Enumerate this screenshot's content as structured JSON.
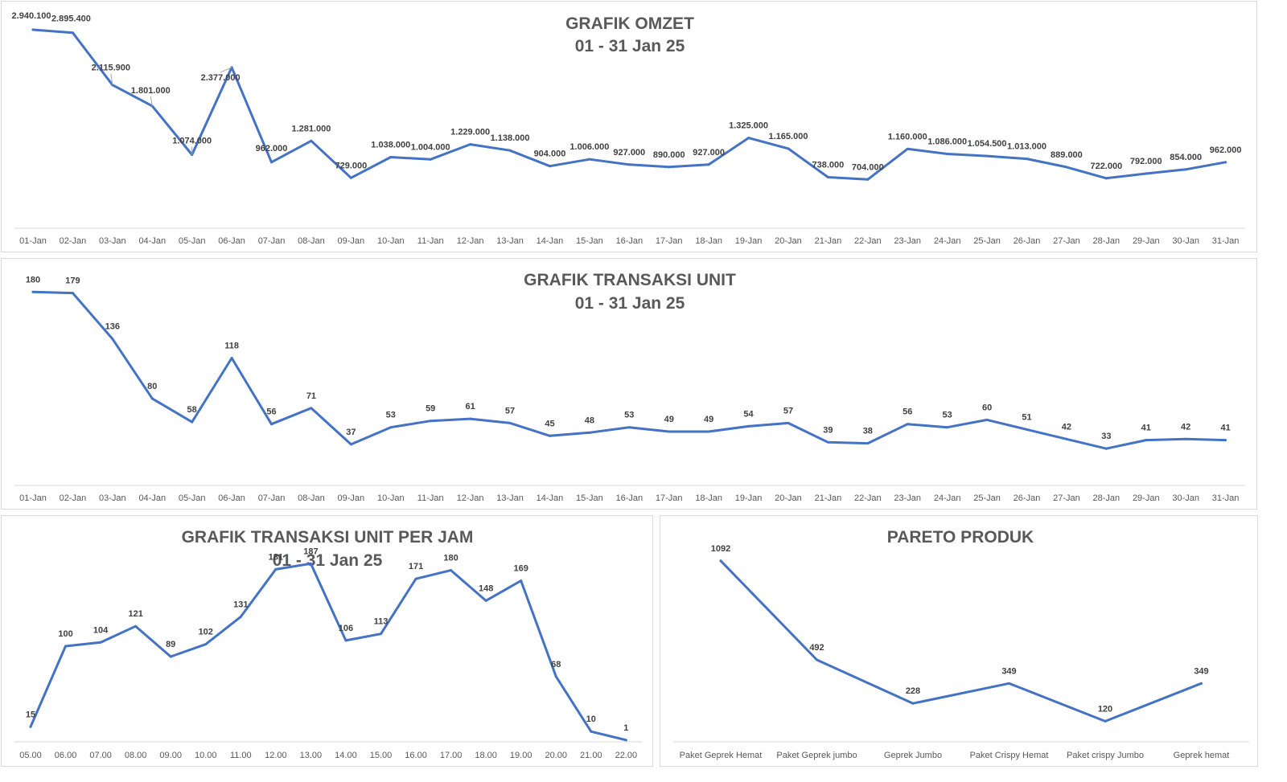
{
  "chart_data": [
    {
      "id": "omzet",
      "type": "line",
      "title": "GRAFIK OMZET",
      "subtitle": "01 - 31 Jan 25",
      "xlabel": "",
      "ylabel": "",
      "grid": false,
      "legend": "none",
      "series_color": "#4472c4",
      "ylim": [
        0,
        3000000
      ],
      "categories": [
        "01-Jan",
        "02-Jan",
        "03-Jan",
        "04-Jan",
        "05-Jan",
        "06-Jan",
        "07-Jan",
        "08-Jan",
        "09-Jan",
        "10-Jan",
        "11-Jan",
        "12-Jan",
        "13-Jan",
        "14-Jan",
        "15-Jan",
        "16-Jan",
        "17-Jan",
        "18-Jan",
        "19-Jan",
        "20-Jan",
        "21-Jan",
        "22-Jan",
        "23-Jan",
        "24-Jan",
        "25-Jan",
        "26-Jan",
        "27-Jan",
        "28-Jan",
        "29-Jan",
        "30-Jan",
        "31-Jan"
      ],
      "values": [
        2940100,
        2895400,
        2115900,
        1801000,
        1074000,
        2377000,
        962000,
        1281000,
        729000,
        1038000,
        1004000,
        1229000,
        1138000,
        904000,
        1006000,
        927000,
        890000,
        927000,
        1325000,
        1165000,
        738000,
        704000,
        1160000,
        1086000,
        1054500,
        1013000,
        889000,
        722000,
        792000,
        854000,
        962000
      ],
      "labels": [
        "2.940.100",
        "2.895.400",
        "2.115.900",
        "1.801.000",
        "1.074.000",
        "2.377.000",
        "962.000",
        "1.281.000",
        "729.000",
        "1.038.000",
        "1.004.000",
        "1.229.000",
        "1.138.000",
        "904.000",
        "1.006.000",
        "927.000",
        "890.000",
        "927.000",
        "1.325.000",
        "1.165.000",
        "738.000",
        "704.000",
        "1.160.000",
        "1.086.000",
        "1.054.500",
        "1.013.000",
        "889.000",
        "722.000",
        "792.000",
        "854.000",
        "962.000"
      ]
    },
    {
      "id": "transaksi",
      "type": "line",
      "title": "GRAFIK TRANSAKSI UNIT",
      "subtitle": "01 - 31 Jan 25",
      "xlabel": "",
      "ylabel": "",
      "grid": false,
      "legend": "none",
      "series_color": "#4472c4",
      "ylim": [
        0,
        190
      ],
      "categories": [
        "01-Jan",
        "02-Jan",
        "03-Jan",
        "04-Jan",
        "05-Jan",
        "06-Jan",
        "07-Jan",
        "08-Jan",
        "09-Jan",
        "10-Jan",
        "11-Jan",
        "12-Jan",
        "13-Jan",
        "14-Jan",
        "15-Jan",
        "16-Jan",
        "17-Jan",
        "18-Jan",
        "19-Jan",
        "20-Jan",
        "21-Jan",
        "22-Jan",
        "23-Jan",
        "24-Jan",
        "25-Jan",
        "26-Jan",
        "27-Jan",
        "28-Jan",
        "29-Jan",
        "30-Jan",
        "31-Jan"
      ],
      "values": [
        180,
        179,
        136,
        80,
        58,
        118,
        56,
        71,
        37,
        53,
        59,
        61,
        57,
        45,
        48,
        53,
        49,
        49,
        54,
        57,
        39,
        38,
        56,
        53,
        60,
        51,
        42,
        33,
        41,
        42,
        41
      ],
      "labels": [
        "180",
        "179",
        "136",
        "80",
        "58",
        "118",
        "56",
        "71",
        "37",
        "53",
        "59",
        "61",
        "57",
        "45",
        "48",
        "53",
        "49",
        "49",
        "54",
        "57",
        "39",
        "38",
        "56",
        "53",
        "60",
        "51",
        "42",
        "33",
        "41",
        "42",
        "41"
      ]
    },
    {
      "id": "perjam",
      "type": "line",
      "title": "GRAFIK TRANSAKSI UNIT PER JAM",
      "subtitle": "01 - 31 Jan 25",
      "xlabel": "",
      "ylabel": "",
      "grid": false,
      "legend": "none",
      "series_color": "#4472c4",
      "ylim": [
        0,
        200
      ],
      "categories": [
        "05.00",
        "06.00",
        "07.00",
        "08.00",
        "09.00",
        "10.00",
        "11.00",
        "12.00",
        "13.00",
        "14.00",
        "15.00",
        "16.00",
        "17.00",
        "18.00",
        "19.00",
        "20.00",
        "21.00",
        "22.00"
      ],
      "values": [
        15,
        100,
        104,
        121,
        89,
        102,
        131,
        181,
        187,
        106,
        113,
        171,
        180,
        148,
        169,
        68,
        10,
        1
      ],
      "labels": [
        "15",
        "100",
        "104",
        "121",
        "89",
        "102",
        "131",
        "181",
        "187",
        "106",
        "113",
        "171",
        "180",
        "148",
        "169",
        "68",
        "10",
        "1"
      ]
    },
    {
      "id": "pareto",
      "type": "line",
      "title": "PARETO PRODUK",
      "subtitle": "",
      "xlabel": "",
      "ylabel": "",
      "grid": false,
      "legend": "none",
      "series_color": "#4472c4",
      "ylim": [
        0,
        1130
      ],
      "categories": [
        "Paket Geprek Hemat",
        "Paket Geprek jumbo",
        "Geprek Jumbo",
        "Paket Crispy Hemat",
        "Paket crispy Jumbo",
        "Geprek hemat"
      ],
      "values": [
        1092,
        492,
        228,
        349,
        120,
        349
      ],
      "labels": [
        "1092",
        "492",
        "228",
        "349",
        "120",
        "349"
      ]
    }
  ]
}
